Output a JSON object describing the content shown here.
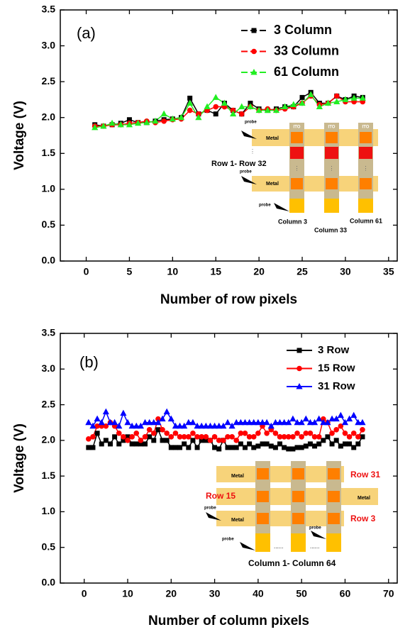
{
  "chart_data": [
    {
      "type": "line",
      "panel_label": "(a)",
      "x_label": "Number of row pixels",
      "y_label": "Voltage (V)",
      "xlim": [
        -3,
        36
      ],
      "ylim": [
        0,
        3.5
      ],
      "xticks": [
        0,
        5,
        10,
        15,
        20,
        25,
        30,
        35
      ],
      "yticks": [
        {
          "value": 0,
          "label": "0.0"
        },
        0.5,
        {
          "value": 1,
          "label": "1.0"
        },
        1.5,
        {
          "value": 2,
          "label": "2.0"
        },
        2.5,
        {
          "value": 3,
          "label": "3.0"
        },
        3.5
      ],
      "legend": "upper right",
      "x": [
        1,
        2,
        3,
        4,
        5,
        6,
        7,
        8,
        9,
        10,
        11,
        12,
        13,
        14,
        15,
        16,
        17,
        18,
        19,
        20,
        21,
        22,
        23,
        24,
        25,
        26,
        27,
        28,
        29,
        30,
        31,
        32
      ],
      "series": [
        {
          "name": "3 Column",
          "color": "#000000",
          "marker": "square",
          "values": [
            1.9,
            1.88,
            1.9,
            1.92,
            1.97,
            1.93,
            1.93,
            1.95,
            1.97,
            1.98,
            2.0,
            2.27,
            2.05,
            2.1,
            2.05,
            2.2,
            2.1,
            2.05,
            2.2,
            2.12,
            2.1,
            2.12,
            2.15,
            2.15,
            2.28,
            2.35,
            2.2,
            2.2,
            2.3,
            2.25,
            2.3,
            2.28
          ]
        },
        {
          "name": "33 Column",
          "color": "#ff0000",
          "marker": "circle",
          "values": [
            1.88,
            1.88,
            1.9,
            1.9,
            1.92,
            1.93,
            1.95,
            1.93,
            1.95,
            1.97,
            1.98,
            2.1,
            2.05,
            2.1,
            2.15,
            2.15,
            2.1,
            2.05,
            2.15,
            2.1,
            2.12,
            2.1,
            2.12,
            2.15,
            2.2,
            2.3,
            2.18,
            2.2,
            2.3,
            2.22,
            2.22,
            2.22
          ]
        },
        {
          "name": "61 Column",
          "color": "#22ee22",
          "marker": "triangle",
          "values": [
            1.86,
            1.88,
            1.92,
            1.9,
            1.9,
            1.92,
            1.93,
            1.95,
            2.05,
            1.98,
            2.0,
            2.2,
            2.0,
            2.15,
            2.28,
            2.2,
            2.05,
            2.15,
            2.15,
            2.1,
            2.1,
            2.1,
            2.15,
            2.18,
            2.2,
            2.32,
            2.15,
            2.2,
            2.22,
            2.25,
            2.27,
            2.27
          ]
        }
      ],
      "inset": {
        "ito": "ITO",
        "metal": "Metal",
        "probe": "probe",
        "rows": "Row 1- Row 32",
        "vdots": "⋮",
        "columns": [
          "Column 3",
          "Column 33",
          "Column 61"
        ]
      }
    },
    {
      "type": "line",
      "panel_label": "(b)",
      "x_label": "Number of column pixels",
      "y_label": "Voltage (V)",
      "xlim": [
        -5.5,
        72
      ],
      "ylim": [
        0,
        3.5
      ],
      "xticks": [
        0,
        10,
        20,
        30,
        40,
        50,
        60,
        70
      ],
      "yticks": [
        {
          "value": 0,
          "label": "0.0"
        },
        0.5,
        {
          "value": 1,
          "label": "1.0"
        },
        1.5,
        {
          "value": 2,
          "label": "2.0"
        },
        2.5,
        {
          "value": 3,
          "label": "3.0"
        },
        3.5
      ],
      "legend": "upper right",
      "x": [
        1,
        2,
        3,
        4,
        5,
        6,
        7,
        8,
        9,
        10,
        11,
        12,
        13,
        14,
        15,
        16,
        17,
        18,
        19,
        20,
        21,
        22,
        23,
        24,
        25,
        26,
        27,
        28,
        29,
        30,
        31,
        32,
        33,
        34,
        35,
        36,
        37,
        38,
        39,
        40,
        41,
        42,
        43,
        44,
        45,
        46,
        47,
        48,
        49,
        50,
        51,
        52,
        53,
        54,
        55,
        56,
        57,
        58,
        59,
        60,
        61,
        62,
        63,
        64
      ],
      "series": [
        {
          "name": "3 Row",
          "color": "#000000",
          "marker": "square",
          "values": [
            1.9,
            1.9,
            2.1,
            1.95,
            2.0,
            1.95,
            2.05,
            1.95,
            2.0,
            2.05,
            1.95,
            1.95,
            1.95,
            1.95,
            2.05,
            2.0,
            2.15,
            2.0,
            2.0,
            1.9,
            1.9,
            1.9,
            1.95,
            1.9,
            2.0,
            1.9,
            2.0,
            2.0,
            2.0,
            1.9,
            1.88,
            2.0,
            1.9,
            1.9,
            1.9,
            1.95,
            1.9,
            1.95,
            1.9,
            1.92,
            1.95,
            1.95,
            1.92,
            1.9,
            1.95,
            1.9,
            1.88,
            1.88,
            1.9,
            1.9,
            1.92,
            1.95,
            1.92,
            1.95,
            2.0,
            2.05,
            1.95,
            2.0,
            1.92,
            1.95,
            1.95,
            1.9,
            1.95,
            2.05
          ]
        },
        {
          "name": "15 Row",
          "color": "#ff0000",
          "marker": "circle",
          "values": [
            2.02,
            2.05,
            2.2,
            2.2,
            2.2,
            2.25,
            2.2,
            2.1,
            2.05,
            2.0,
            2.05,
            2.1,
            2.0,
            2.05,
            2.15,
            2.1,
            2.3,
            2.15,
            2.1,
            2.05,
            2.1,
            2.05,
            2.05,
            2.05,
            2.1,
            2.05,
            2.05,
            2.05,
            2.0,
            2.05,
            2.0,
            2.0,
            2.05,
            2.05,
            2.0,
            2.1,
            2.1,
            2.05,
            2.05,
            2.1,
            2.2,
            2.1,
            2.15,
            2.1,
            2.05,
            2.05,
            2.05,
            2.05,
            2.1,
            2.05,
            2.1,
            2.1,
            2.05,
            2.05,
            2.3,
            2.25,
            2.1,
            2.15,
            2.2,
            2.1,
            2.05,
            2.1,
            2.05,
            2.15
          ]
        },
        {
          "name": "31 Row",
          "color": "#0000ff",
          "marker": "triangle",
          "values": [
            2.25,
            2.2,
            2.3,
            2.25,
            2.4,
            2.25,
            2.25,
            2.2,
            2.38,
            2.25,
            2.2,
            2.2,
            2.2,
            2.25,
            2.25,
            2.25,
            2.25,
            2.3,
            2.4,
            2.3,
            2.2,
            2.2,
            2.2,
            2.25,
            2.25,
            2.2,
            2.2,
            2.2,
            2.2,
            2.2,
            2.2,
            2.2,
            2.25,
            2.2,
            2.25,
            2.25,
            2.25,
            2.25,
            2.25,
            2.25,
            2.25,
            2.25,
            2.2,
            2.25,
            2.25,
            2.25,
            2.25,
            2.3,
            2.25,
            2.25,
            2.3,
            2.25,
            2.25,
            2.3,
            2.25,
            2.25,
            2.3,
            2.3,
            2.35,
            2.25,
            2.3,
            2.35,
            2.25,
            2.25
          ]
        }
      ],
      "inset": {
        "metal": "Metal",
        "probe": "probe",
        "rows": [
          "Row 31",
          "Row 15",
          "Row 3"
        ],
        "columns": "Column 1- Column 64",
        "dots": "......"
      }
    }
  ]
}
